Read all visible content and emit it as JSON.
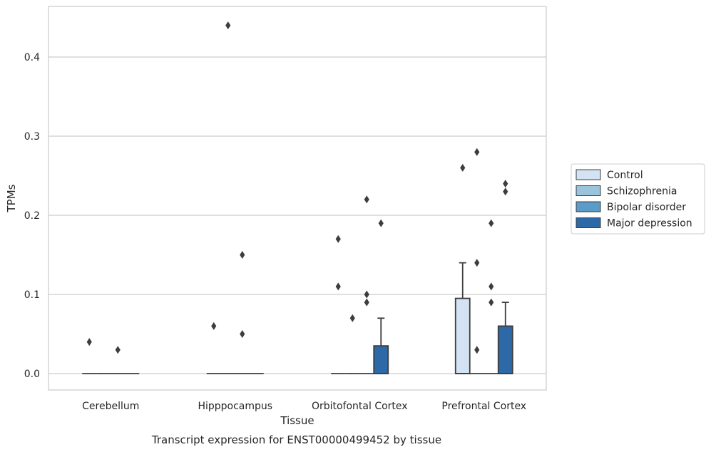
{
  "chart_data": {
    "type": "box",
    "xlabel": "Tissue",
    "ylabel": "TPMs",
    "caption": "Transcript expression for ENST00000499452 by tissue",
    "ylim": [
      -0.021,
      0.465
    ],
    "yticks": [
      "0.0",
      "0.1",
      "0.2",
      "0.3",
      "0.4"
    ],
    "ytick_values": [
      0.0,
      0.1,
      0.2,
      0.3,
      0.4
    ],
    "grid": true,
    "legend_position": "right",
    "categories": [
      "Cerebellum",
      "Hipppocampus",
      "Orbitofontal Cortex",
      "Prefrontal Cortex"
    ],
    "series": [
      {
        "name": "Control",
        "color": "#d4e3f3",
        "boxes": [
          {
            "q1": 0,
            "median": 0,
            "q3": 0,
            "whislo": 0,
            "whishi": 0,
            "fliers": [
              0.04
            ]
          },
          {
            "q1": 0,
            "median": 0,
            "q3": 0,
            "whislo": 0,
            "whishi": 0,
            "fliers": [
              0.06
            ]
          },
          {
            "q1": 0,
            "median": 0,
            "q3": 0,
            "whislo": 0,
            "whishi": 0,
            "fliers": [
              0.17,
              0.11
            ]
          },
          {
            "q1": 0,
            "median": 0,
            "q3": 0.095,
            "whislo": 0,
            "whishi": 0.14,
            "fliers": [
              0.26
            ]
          }
        ]
      },
      {
        "name": "Schizophrenia",
        "color": "#9ac3dc",
        "boxes": [
          {
            "q1": 0,
            "median": 0,
            "q3": 0,
            "whislo": 0,
            "whishi": 0,
            "fliers": []
          },
          {
            "q1": 0,
            "median": 0,
            "q3": 0,
            "whislo": 0,
            "whishi": 0,
            "fliers": [
              0.44
            ]
          },
          {
            "q1": 0,
            "median": 0,
            "q3": 0,
            "whislo": 0,
            "whishi": 0,
            "fliers": [
              0.07
            ]
          },
          {
            "q1": 0,
            "median": 0,
            "q3": 0,
            "whislo": 0,
            "whishi": 0,
            "fliers": [
              0.28,
              0.14,
              0.03
            ]
          }
        ]
      },
      {
        "name": "Bipolar disorder",
        "color": "#5b9bc8",
        "boxes": [
          {
            "q1": 0,
            "median": 0,
            "q3": 0,
            "whislo": 0,
            "whishi": 0,
            "fliers": [
              0.03
            ]
          },
          {
            "q1": 0,
            "median": 0,
            "q3": 0,
            "whislo": 0,
            "whishi": 0,
            "fliers": [
              0.15,
              0.05
            ]
          },
          {
            "q1": 0,
            "median": 0,
            "q3": 0,
            "whislo": 0,
            "whishi": 0,
            "fliers": [
              0.22,
              0.1,
              0.09
            ]
          },
          {
            "q1": 0,
            "median": 0,
            "q3": 0,
            "whislo": 0,
            "whishi": 0,
            "fliers": [
              0.19,
              0.11,
              0.09
            ]
          }
        ]
      },
      {
        "name": "Major depression",
        "color": "#2d69a6",
        "boxes": [
          {
            "q1": 0,
            "median": 0,
            "q3": 0,
            "whislo": 0,
            "whishi": 0,
            "fliers": []
          },
          {
            "q1": 0,
            "median": 0,
            "q3": 0,
            "whislo": 0,
            "whishi": 0,
            "fliers": []
          },
          {
            "q1": 0,
            "median": 0,
            "q3": 0.035,
            "whislo": 0,
            "whishi": 0.07,
            "fliers": [
              0.19
            ]
          },
          {
            "q1": 0,
            "median": 0,
            "q3": 0.06,
            "whislo": 0,
            "whishi": 0.09,
            "fliers": [
              0.24,
              0.23
            ]
          }
        ]
      }
    ]
  }
}
